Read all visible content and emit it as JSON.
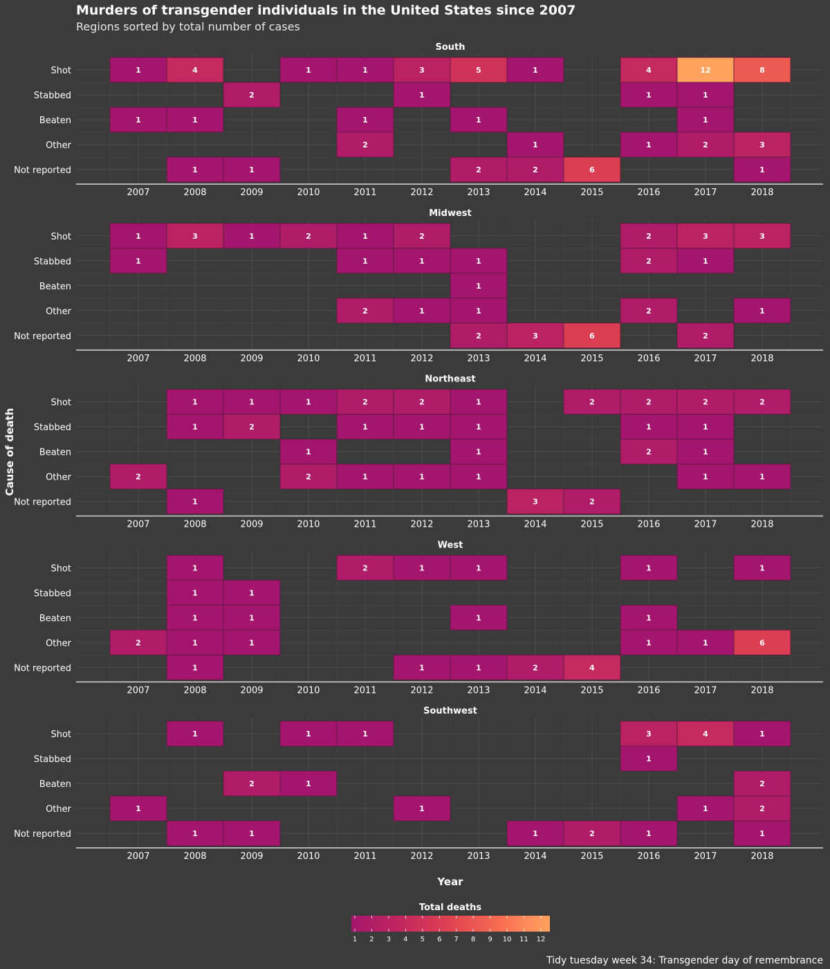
{
  "title": "Murders of transgender individuals in the United States since 2007",
  "subtitle": "Regions sorted by total number of cases",
  "caption": "Tidy tuesday week 34: Transgender day of remembrance",
  "chart_data": {
    "type": "heatmap",
    "xlabel": "Year",
    "ylabel": "Cause of death",
    "legend_title": "Total deaths",
    "legend_position": "bottom",
    "legend_ticks": [
      1,
      2,
      3,
      4,
      5,
      6,
      7,
      8,
      9,
      10,
      11,
      12
    ],
    "value_range": [
      1,
      12
    ],
    "colors": [
      "#a4166e",
      "#c3265e",
      "#e04351",
      "#f86d53",
      "#ffa35f"
    ],
    "grid": true,
    "years": [
      2007,
      2008,
      2009,
      2010,
      2011,
      2012,
      2013,
      2014,
      2015,
      2016,
      2017,
      2018
    ],
    "causes": [
      "Shot",
      "Stabbed",
      "Beaten",
      "Other",
      "Not reported"
    ],
    "panels": [
      {
        "region": "South",
        "cells": [
          {
            "cause": "Shot",
            "year": 2007,
            "value": 1
          },
          {
            "cause": "Shot",
            "year": 2008,
            "value": 4
          },
          {
            "cause": "Shot",
            "year": 2010,
            "value": 1
          },
          {
            "cause": "Shot",
            "year": 2011,
            "value": 1
          },
          {
            "cause": "Shot",
            "year": 2012,
            "value": 3
          },
          {
            "cause": "Shot",
            "year": 2013,
            "value": 5
          },
          {
            "cause": "Shot",
            "year": 2014,
            "value": 1
          },
          {
            "cause": "Shot",
            "year": 2016,
            "value": 4
          },
          {
            "cause": "Shot",
            "year": 2017,
            "value": 12
          },
          {
            "cause": "Shot",
            "year": 2018,
            "value": 8
          },
          {
            "cause": "Stabbed",
            "year": 2009,
            "value": 2
          },
          {
            "cause": "Stabbed",
            "year": 2012,
            "value": 1
          },
          {
            "cause": "Stabbed",
            "year": 2016,
            "value": 1
          },
          {
            "cause": "Stabbed",
            "year": 2017,
            "value": 1
          },
          {
            "cause": "Beaten",
            "year": 2007,
            "value": 1
          },
          {
            "cause": "Beaten",
            "year": 2008,
            "value": 1
          },
          {
            "cause": "Beaten",
            "year": 2011,
            "value": 1
          },
          {
            "cause": "Beaten",
            "year": 2013,
            "value": 1
          },
          {
            "cause": "Beaten",
            "year": 2017,
            "value": 1
          },
          {
            "cause": "Other",
            "year": 2011,
            "value": 2
          },
          {
            "cause": "Other",
            "year": 2014,
            "value": 1
          },
          {
            "cause": "Other",
            "year": 2016,
            "value": 1
          },
          {
            "cause": "Other",
            "year": 2017,
            "value": 2
          },
          {
            "cause": "Other",
            "year": 2018,
            "value": 3
          },
          {
            "cause": "Not reported",
            "year": 2008,
            "value": 1
          },
          {
            "cause": "Not reported",
            "year": 2009,
            "value": 1
          },
          {
            "cause": "Not reported",
            "year": 2013,
            "value": 2
          },
          {
            "cause": "Not reported",
            "year": 2014,
            "value": 2
          },
          {
            "cause": "Not reported",
            "year": 2015,
            "value": 6
          },
          {
            "cause": "Not reported",
            "year": 2018,
            "value": 1
          }
        ]
      },
      {
        "region": "Midwest",
        "cells": [
          {
            "cause": "Shot",
            "year": 2007,
            "value": 1
          },
          {
            "cause": "Shot",
            "year": 2008,
            "value": 3
          },
          {
            "cause": "Shot",
            "year": 2009,
            "value": 1
          },
          {
            "cause": "Shot",
            "year": 2010,
            "value": 2
          },
          {
            "cause": "Shot",
            "year": 2011,
            "value": 1
          },
          {
            "cause": "Shot",
            "year": 2012,
            "value": 2
          },
          {
            "cause": "Shot",
            "year": 2016,
            "value": 2
          },
          {
            "cause": "Shot",
            "year": 2017,
            "value": 3
          },
          {
            "cause": "Shot",
            "year": 2018,
            "value": 3
          },
          {
            "cause": "Stabbed",
            "year": 2007,
            "value": 1
          },
          {
            "cause": "Stabbed",
            "year": 2011,
            "value": 1
          },
          {
            "cause": "Stabbed",
            "year": 2012,
            "value": 1
          },
          {
            "cause": "Stabbed",
            "year": 2013,
            "value": 1
          },
          {
            "cause": "Stabbed",
            "year": 2016,
            "value": 2
          },
          {
            "cause": "Stabbed",
            "year": 2017,
            "value": 1
          },
          {
            "cause": "Beaten",
            "year": 2013,
            "value": 1
          },
          {
            "cause": "Other",
            "year": 2011,
            "value": 2
          },
          {
            "cause": "Other",
            "year": 2012,
            "value": 1
          },
          {
            "cause": "Other",
            "year": 2013,
            "value": 1
          },
          {
            "cause": "Other",
            "year": 2016,
            "value": 2
          },
          {
            "cause": "Other",
            "year": 2018,
            "value": 1
          },
          {
            "cause": "Not reported",
            "year": 2013,
            "value": 2
          },
          {
            "cause": "Not reported",
            "year": 2014,
            "value": 3
          },
          {
            "cause": "Not reported",
            "year": 2015,
            "value": 6
          },
          {
            "cause": "Not reported",
            "year": 2017,
            "value": 2
          }
        ]
      },
      {
        "region": "Northeast",
        "cells": [
          {
            "cause": "Shot",
            "year": 2008,
            "value": 1
          },
          {
            "cause": "Shot",
            "year": 2009,
            "value": 1
          },
          {
            "cause": "Shot",
            "year": 2010,
            "value": 1
          },
          {
            "cause": "Shot",
            "year": 2011,
            "value": 2
          },
          {
            "cause": "Shot",
            "year": 2012,
            "value": 2
          },
          {
            "cause": "Shot",
            "year": 2013,
            "value": 1
          },
          {
            "cause": "Shot",
            "year": 2015,
            "value": 2
          },
          {
            "cause": "Shot",
            "year": 2016,
            "value": 2
          },
          {
            "cause": "Shot",
            "year": 2017,
            "value": 2
          },
          {
            "cause": "Shot",
            "year": 2018,
            "value": 2
          },
          {
            "cause": "Stabbed",
            "year": 2008,
            "value": 1
          },
          {
            "cause": "Stabbed",
            "year": 2009,
            "value": 2
          },
          {
            "cause": "Stabbed",
            "year": 2011,
            "value": 1
          },
          {
            "cause": "Stabbed",
            "year": 2012,
            "value": 1
          },
          {
            "cause": "Stabbed",
            "year": 2013,
            "value": 1
          },
          {
            "cause": "Stabbed",
            "year": 2016,
            "value": 1
          },
          {
            "cause": "Stabbed",
            "year": 2017,
            "value": 1
          },
          {
            "cause": "Beaten",
            "year": 2010,
            "value": 1
          },
          {
            "cause": "Beaten",
            "year": 2013,
            "value": 1
          },
          {
            "cause": "Beaten",
            "year": 2016,
            "value": 2
          },
          {
            "cause": "Beaten",
            "year": 2017,
            "value": 1
          },
          {
            "cause": "Other",
            "year": 2007,
            "value": 2
          },
          {
            "cause": "Other",
            "year": 2010,
            "value": 2
          },
          {
            "cause": "Other",
            "year": 2011,
            "value": 1
          },
          {
            "cause": "Other",
            "year": 2012,
            "value": 1
          },
          {
            "cause": "Other",
            "year": 2013,
            "value": 1
          },
          {
            "cause": "Other",
            "year": 2017,
            "value": 1
          },
          {
            "cause": "Other",
            "year": 2018,
            "value": 1
          },
          {
            "cause": "Not reported",
            "year": 2008,
            "value": 1
          },
          {
            "cause": "Not reported",
            "year": 2014,
            "value": 3
          },
          {
            "cause": "Not reported",
            "year": 2015,
            "value": 2
          }
        ]
      },
      {
        "region": "West",
        "cells": [
          {
            "cause": "Shot",
            "year": 2008,
            "value": 1
          },
          {
            "cause": "Shot",
            "year": 2011,
            "value": 2
          },
          {
            "cause": "Shot",
            "year": 2012,
            "value": 1
          },
          {
            "cause": "Shot",
            "year": 2013,
            "value": 1
          },
          {
            "cause": "Shot",
            "year": 2016,
            "value": 1
          },
          {
            "cause": "Shot",
            "year": 2018,
            "value": 1
          },
          {
            "cause": "Stabbed",
            "year": 2008,
            "value": 1
          },
          {
            "cause": "Stabbed",
            "year": 2009,
            "value": 1
          },
          {
            "cause": "Beaten",
            "year": 2008,
            "value": 1
          },
          {
            "cause": "Beaten",
            "year": 2009,
            "value": 1
          },
          {
            "cause": "Beaten",
            "year": 2013,
            "value": 1
          },
          {
            "cause": "Beaten",
            "year": 2016,
            "value": 1
          },
          {
            "cause": "Other",
            "year": 2007,
            "value": 2
          },
          {
            "cause": "Other",
            "year": 2008,
            "value": 1
          },
          {
            "cause": "Other",
            "year": 2009,
            "value": 1
          },
          {
            "cause": "Other",
            "year": 2016,
            "value": 1
          },
          {
            "cause": "Other",
            "year": 2017,
            "value": 1
          },
          {
            "cause": "Other",
            "year": 2018,
            "value": 6
          },
          {
            "cause": "Not reported",
            "year": 2008,
            "value": 1
          },
          {
            "cause": "Not reported",
            "year": 2012,
            "value": 1
          },
          {
            "cause": "Not reported",
            "year": 2013,
            "value": 1
          },
          {
            "cause": "Not reported",
            "year": 2014,
            "value": 2
          },
          {
            "cause": "Not reported",
            "year": 2015,
            "value": 4
          }
        ]
      },
      {
        "region": "Southwest",
        "cells": [
          {
            "cause": "Shot",
            "year": 2008,
            "value": 1
          },
          {
            "cause": "Shot",
            "year": 2010,
            "value": 1
          },
          {
            "cause": "Shot",
            "year": 2011,
            "value": 1
          },
          {
            "cause": "Shot",
            "year": 2016,
            "value": 3
          },
          {
            "cause": "Shot",
            "year": 2017,
            "value": 4
          },
          {
            "cause": "Shot",
            "year": 2018,
            "value": 1
          },
          {
            "cause": "Stabbed",
            "year": 2016,
            "value": 1
          },
          {
            "cause": "Beaten",
            "year": 2009,
            "value": 2
          },
          {
            "cause": "Beaten",
            "year": 2010,
            "value": 1
          },
          {
            "cause": "Beaten",
            "year": 2018,
            "value": 2
          },
          {
            "cause": "Other",
            "year": 2007,
            "value": 1
          },
          {
            "cause": "Other",
            "year": 2012,
            "value": 1
          },
          {
            "cause": "Other",
            "year": 2017,
            "value": 1
          },
          {
            "cause": "Other",
            "year": 2018,
            "value": 2
          },
          {
            "cause": "Not reported",
            "year": 2008,
            "value": 1
          },
          {
            "cause": "Not reported",
            "year": 2009,
            "value": 1
          },
          {
            "cause": "Not reported",
            "year": 2014,
            "value": 1
          },
          {
            "cause": "Not reported",
            "year": 2015,
            "value": 2
          },
          {
            "cause": "Not reported",
            "year": 2016,
            "value": 1
          },
          {
            "cause": "Not reported",
            "year": 2018,
            "value": 1
          }
        ]
      }
    ]
  }
}
